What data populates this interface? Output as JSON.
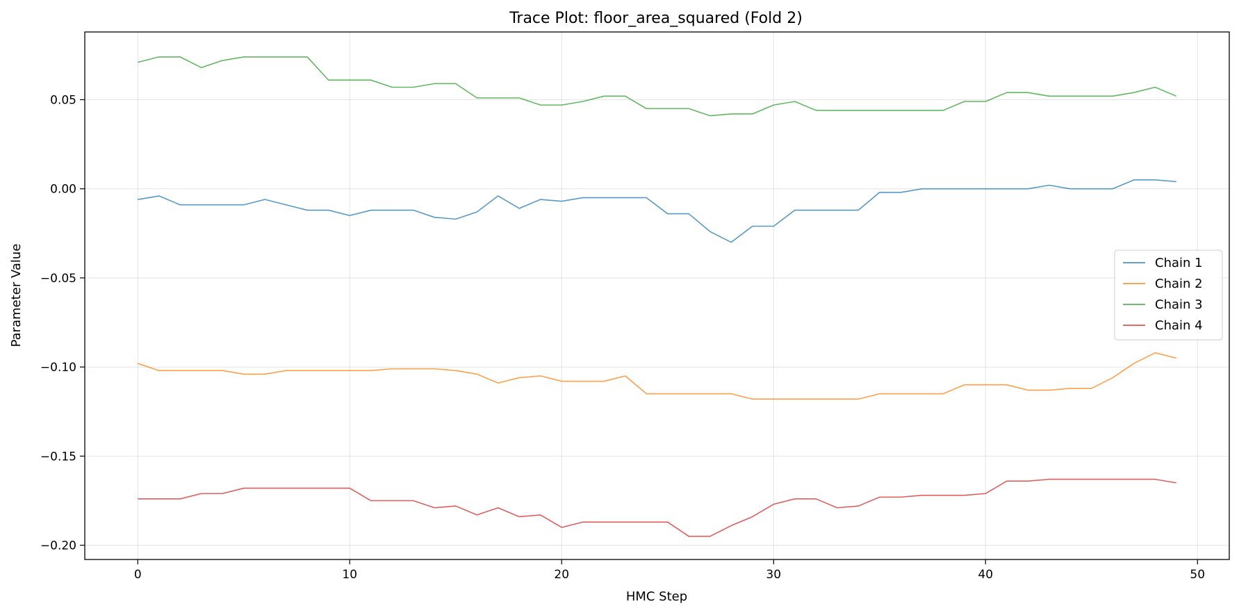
{
  "chart_data": {
    "type": "line",
    "title": "Trace Plot: floor_area_squared (Fold 2)",
    "xlabel": "HMC Step",
    "ylabel": "Parameter Value",
    "xlim": [
      -2.5,
      51.5
    ],
    "ylim": [
      -0.208,
      0.088
    ],
    "xticks": [
      0,
      10,
      20,
      30,
      40,
      50
    ],
    "xtick_labels": [
      "0",
      "10",
      "20",
      "30",
      "40",
      "50"
    ],
    "yticks": [
      -0.2,
      -0.15,
      -0.1,
      -0.05,
      0.0,
      0.05
    ],
    "ytick_labels": [
      "−0.20",
      "−0.15",
      "−0.10",
      "−0.05",
      "0.00",
      "0.05"
    ],
    "grid": true,
    "legend_position": "center-right",
    "x": [
      0,
      1,
      2,
      3,
      4,
      5,
      6,
      7,
      8,
      9,
      10,
      11,
      12,
      13,
      14,
      15,
      16,
      17,
      18,
      19,
      20,
      21,
      22,
      23,
      24,
      25,
      26,
      27,
      28,
      29,
      30,
      31,
      32,
      33,
      34,
      35,
      36,
      37,
      38,
      39,
      40,
      41,
      42,
      43,
      44,
      45,
      46,
      47,
      48,
      49
    ],
    "series": [
      {
        "name": "Chain 1",
        "color": "#1f77b4",
        "values": [
          -0.006,
          -0.004,
          -0.009,
          -0.009,
          -0.009,
          -0.009,
          -0.006,
          -0.009,
          -0.012,
          -0.012,
          -0.015,
          -0.012,
          -0.012,
          -0.012,
          -0.016,
          -0.017,
          -0.013,
          -0.004,
          -0.011,
          -0.006,
          -0.007,
          -0.005,
          -0.005,
          -0.005,
          -0.005,
          -0.014,
          -0.014,
          -0.024,
          -0.03,
          -0.021,
          -0.021,
          -0.012,
          -0.012,
          -0.012,
          -0.012,
          -0.002,
          -0.002,
          0.0,
          0.0,
          0.0,
          0.0,
          0.0,
          0.0,
          0.002,
          0.0,
          0.0,
          0.0,
          0.005,
          0.005,
          0.004
        ]
      },
      {
        "name": "Chain 2",
        "color": "#ff7f0e",
        "values": [
          -0.098,
          -0.102,
          -0.102,
          -0.102,
          -0.102,
          -0.104,
          -0.104,
          -0.102,
          -0.102,
          -0.102,
          -0.102,
          -0.102,
          -0.101,
          -0.101,
          -0.101,
          -0.102,
          -0.104,
          -0.109,
          -0.106,
          -0.105,
          -0.108,
          -0.108,
          -0.108,
          -0.105,
          -0.115,
          -0.115,
          -0.115,
          -0.115,
          -0.115,
          -0.118,
          -0.118,
          -0.118,
          -0.118,
          -0.118,
          -0.118,
          -0.115,
          -0.115,
          -0.115,
          -0.115,
          -0.11,
          -0.11,
          -0.11,
          -0.113,
          -0.113,
          -0.112,
          -0.112,
          -0.106,
          -0.098,
          -0.092,
          -0.095
        ]
      },
      {
        "name": "Chain 3",
        "color": "#2ca02c",
        "values": [
          0.071,
          0.074,
          0.074,
          0.068,
          0.072,
          0.074,
          0.074,
          0.074,
          0.074,
          0.061,
          0.061,
          0.061,
          0.057,
          0.057,
          0.059,
          0.059,
          0.051,
          0.051,
          0.051,
          0.047,
          0.047,
          0.049,
          0.052,
          0.052,
          0.045,
          0.045,
          0.045,
          0.041,
          0.042,
          0.042,
          0.047,
          0.049,
          0.044,
          0.044,
          0.044,
          0.044,
          0.044,
          0.044,
          0.044,
          0.049,
          0.049,
          0.054,
          0.054,
          0.052,
          0.052,
          0.052,
          0.052,
          0.054,
          0.057,
          0.052
        ]
      },
      {
        "name": "Chain 4",
        "color": "#d62728",
        "values": [
          -0.174,
          -0.174,
          -0.174,
          -0.171,
          -0.171,
          -0.168,
          -0.168,
          -0.168,
          -0.168,
          -0.168,
          -0.168,
          -0.175,
          -0.175,
          -0.175,
          -0.179,
          -0.178,
          -0.183,
          -0.179,
          -0.184,
          -0.183,
          -0.19,
          -0.187,
          -0.187,
          -0.187,
          -0.187,
          -0.187,
          -0.195,
          -0.195,
          -0.189,
          -0.184,
          -0.177,
          -0.174,
          -0.174,
          -0.179,
          -0.178,
          -0.173,
          -0.173,
          -0.172,
          -0.172,
          -0.172,
          -0.171,
          -0.164,
          -0.164,
          -0.163,
          -0.163,
          -0.163,
          -0.163,
          -0.163,
          -0.163,
          -0.165
        ]
      }
    ]
  }
}
